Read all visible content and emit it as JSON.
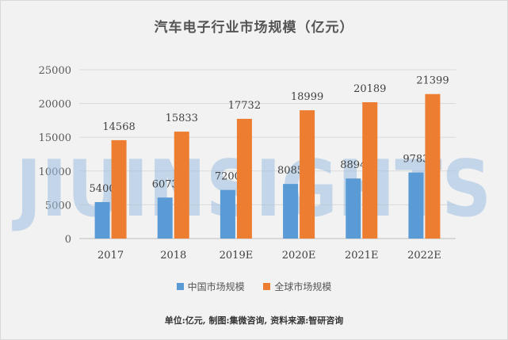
{
  "chart_data": {
    "type": "bar",
    "title": "汽车电子行业市场规模（亿元）",
    "categories": [
      "2017",
      "2018",
      "2019E",
      "2020E",
      "2021E",
      "2022E"
    ],
    "series": [
      {
        "name": "中国市场规模",
        "values": [
          5400,
          6073,
          7200,
          8085,
          8894,
          9783
        ],
        "color": "#5b9bd5"
      },
      {
        "name": "全球市场规模",
        "values": [
          14568,
          15833,
          17732,
          18999,
          20189,
          21399
        ],
        "color": "#ed7d31"
      }
    ],
    "ylim": [
      0,
      25000
    ],
    "yticks": [
      0,
      5000,
      10000,
      15000,
      20000,
      25000
    ],
    "grid": true,
    "legend_position": "bottom",
    "data_labels": true
  },
  "watermark": "JIUINSIGHTS",
  "source_note": "单位:亿元, 制图:集微咨询, 资料来源:智研咨询"
}
